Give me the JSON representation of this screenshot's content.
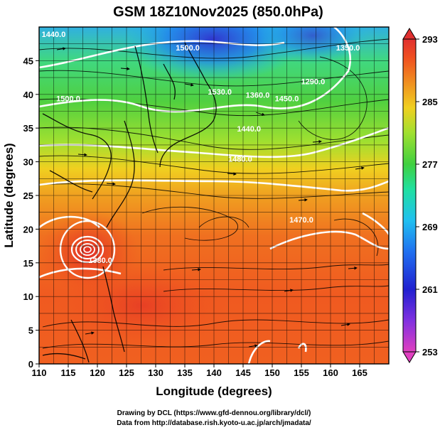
{
  "title": "GSM 18Z10Nov2025 (850.0hPa)",
  "credits": [
    "Drawing by DCL (https://www.gfd-dennou.org/library/dcl/)",
    "Data from http://database.rish.kyoto-u.ac.jp/arch/jmadata/"
  ],
  "chart_data": {
    "type": "heatmap",
    "title": "GSM 18Z10Nov2025 (850.0hPa)",
    "xlabel": "Longitude (degrees)",
    "ylabel": "Latitude  (degrees)",
    "xlim": [
      110,
      170
    ],
    "ylim": [
      0,
      50
    ],
    "x_ticks": [
      "110",
      "115",
      "120",
      "125",
      "130",
      "135",
      "140",
      "145",
      "150",
      "155",
      "160",
      "165"
    ],
    "y_ticks": [
      "0",
      "5",
      "10",
      "15",
      "20",
      "25",
      "30",
      "35",
      "40",
      "45"
    ],
    "x_tick_values": [
      110,
      115,
      120,
      125,
      130,
      135,
      140,
      145,
      150,
      155,
      160,
      165
    ],
    "y_tick_values": [
      0,
      5,
      10,
      15,
      20,
      25,
      30,
      35,
      40,
      45
    ],
    "colorbar": {
      "range": [
        253,
        293
      ],
      "tick_values": [
        253,
        261,
        269,
        277,
        285,
        293
      ],
      "ticks": [
        "253",
        "261",
        "269",
        "277",
        "285",
        "293"
      ],
      "colors": [
        "#e040c0",
        "#8030e0",
        "#2020d0",
        "#2070f0",
        "#20c0f0",
        "#20e0a0",
        "#40d040",
        "#a0e030",
        "#f0d020",
        "#f09020",
        "#f05020",
        "#e03030"
      ]
    },
    "contour_labels": [
      {
        "text": "1440.0",
        "lon": 112.5,
        "lat": 48.5
      },
      {
        "text": "1500.0",
        "lon": 135.5,
        "lat": 46.5
      },
      {
        "text": "1530.0",
        "lon": 141.0,
        "lat": 40.0
      },
      {
        "text": "1360.0",
        "lon": 147.5,
        "lat": 39.5
      },
      {
        "text": "1450.0",
        "lon": 152.5,
        "lat": 39.0
      },
      {
        "text": "1290.0",
        "lon": 157.0,
        "lat": 41.5
      },
      {
        "text": "1350.0",
        "lon": 163.0,
        "lat": 46.5
      },
      {
        "text": "1440.0",
        "lon": 146.0,
        "lat": 34.5
      },
      {
        "text": "1480.0",
        "lon": 144.5,
        "lat": 30.0
      },
      {
        "text": "1500.0",
        "lon": 115.0,
        "lat": 39.0
      },
      {
        "text": "1470.0",
        "lon": 155.0,
        "lat": 21.0
      },
      {
        "text": "1380.0",
        "lon": 120.5,
        "lat": 15.0
      }
    ],
    "cyclone_center": {
      "lon": 118.0,
      "lat": 19.3
    }
  }
}
